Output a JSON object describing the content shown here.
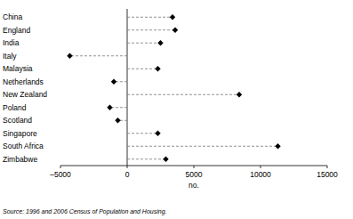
{
  "chart_data": {
    "type": "dot",
    "orientation": "horizontal",
    "categories": [
      "China",
      "England",
      "India",
      "Italy",
      "Malaysia",
      "Netherlands",
      "New Zealand",
      "Poland",
      "Scotland",
      "Singapore",
      "South Africa",
      "Zimbabwe"
    ],
    "values": [
      3400,
      3600,
      2500,
      -4300,
      2300,
      -1000,
      8400,
      -1300,
      -700,
      2300,
      11300,
      2900
    ],
    "color": "#000000",
    "marker": "diamond",
    "line_style": "dashed",
    "xlim": [
      -5000,
      15000
    ],
    "xticks": [
      {
        "value": -5000,
        "label": "–5000"
      },
      0,
      5000,
      10000,
      15000
    ],
    "x_label": "no.",
    "source": "Source: 1996 and 2006 Census of Population and Housing."
  }
}
